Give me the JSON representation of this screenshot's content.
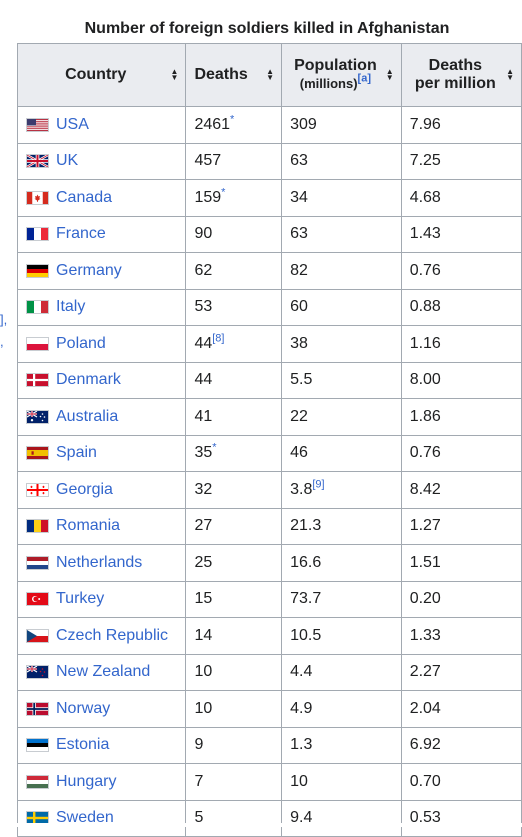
{
  "caption": "Number of foreign soldiers killed in Afghanistan",
  "left_edge_marks": [
    "],",
    ","
  ],
  "headers": {
    "country": "Country",
    "deaths": "Deaths",
    "population_line1": "Population",
    "population_line2": "(millions)",
    "population_ref": "[a]",
    "dpm_line1": "Deaths",
    "dpm_line2": "per million"
  },
  "rows": [
    {
      "country": "USA",
      "flag": "usa",
      "deaths": "2461",
      "deaths_sup": "*",
      "pop": "309",
      "pop_sup": "",
      "dpm": "7.96"
    },
    {
      "country": "UK",
      "flag": "uk",
      "deaths": "457",
      "deaths_sup": "",
      "pop": "63",
      "pop_sup": "",
      "dpm": "7.25"
    },
    {
      "country": "Canada",
      "flag": "canada",
      "deaths": "159",
      "deaths_sup": "*",
      "pop": "34",
      "pop_sup": "",
      "dpm": "4.68"
    },
    {
      "country": "France",
      "flag": "france",
      "deaths": "90",
      "deaths_sup": "",
      "pop": "63",
      "pop_sup": "",
      "dpm": "1.43"
    },
    {
      "country": "Germany",
      "flag": "germany",
      "deaths": "62",
      "deaths_sup": "",
      "pop": "82",
      "pop_sup": "",
      "dpm": "0.76"
    },
    {
      "country": "Italy",
      "flag": "italy",
      "deaths": "53",
      "deaths_sup": "",
      "pop": "60",
      "pop_sup": "",
      "dpm": "0.88"
    },
    {
      "country": "Poland",
      "flag": "poland",
      "deaths": "44",
      "deaths_sup": "[8]",
      "pop": "38",
      "pop_sup": "",
      "dpm": "1.16"
    },
    {
      "country": "Denmark",
      "flag": "denmark",
      "deaths": "44",
      "deaths_sup": "",
      "pop": "5.5",
      "pop_sup": "",
      "dpm": "8.00"
    },
    {
      "country": "Australia",
      "flag": "australia",
      "deaths": "41",
      "deaths_sup": "",
      "pop": "22",
      "pop_sup": "",
      "dpm": "1.86"
    },
    {
      "country": "Spain",
      "flag": "spain",
      "deaths": "35",
      "deaths_sup": "*",
      "pop": "46",
      "pop_sup": "",
      "dpm": "0.76"
    },
    {
      "country": "Georgia",
      "flag": "georgia",
      "deaths": "32",
      "deaths_sup": "",
      "pop": "3.8",
      "pop_sup": "[9]",
      "dpm": "8.42"
    },
    {
      "country": "Romania",
      "flag": "romania",
      "deaths": "27",
      "deaths_sup": "",
      "pop": "21.3",
      "pop_sup": "",
      "dpm": "1.27"
    },
    {
      "country": "Netherlands",
      "flag": "netherlands",
      "deaths": "25",
      "deaths_sup": "",
      "pop": "16.6",
      "pop_sup": "",
      "dpm": "1.51"
    },
    {
      "country": "Turkey",
      "flag": "turkey",
      "deaths": "15",
      "deaths_sup": "",
      "pop": "73.7",
      "pop_sup": "",
      "dpm": "0.20"
    },
    {
      "country": "Czech Republic",
      "flag": "czech",
      "deaths": "14",
      "deaths_sup": "",
      "pop": "10.5",
      "pop_sup": "",
      "dpm": "1.33"
    },
    {
      "country": "New Zealand",
      "flag": "newzealand",
      "deaths": "10",
      "deaths_sup": "",
      "pop": "4.4",
      "pop_sup": "",
      "dpm": "2.27"
    },
    {
      "country": "Norway",
      "flag": "norway",
      "deaths": "10",
      "deaths_sup": "",
      "pop": "4.9",
      "pop_sup": "",
      "dpm": "2.04"
    },
    {
      "country": "Estonia",
      "flag": "estonia",
      "deaths": "9",
      "deaths_sup": "",
      "pop": "1.3",
      "pop_sup": "",
      "dpm": "6.92"
    },
    {
      "country": "Hungary",
      "flag": "hungary",
      "deaths": "7",
      "deaths_sup": "",
      "pop": "10",
      "pop_sup": "",
      "dpm": "0.70"
    },
    {
      "country": "Sweden",
      "flag": "sweden",
      "deaths": "5",
      "deaths_sup": "",
      "pop": "9.4",
      "pop_sup": "",
      "dpm": "0.53"
    }
  ]
}
